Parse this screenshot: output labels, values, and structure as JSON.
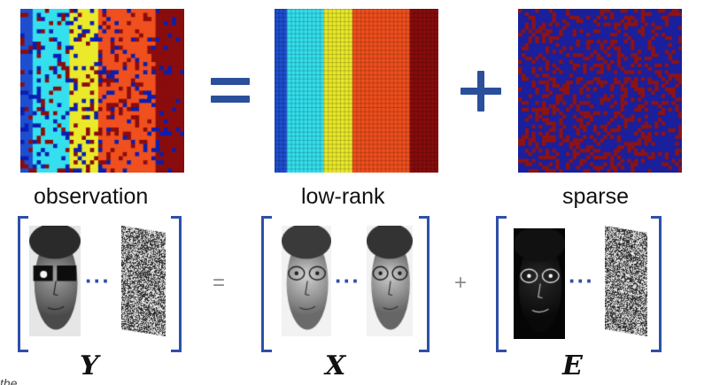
{
  "equation_top": {
    "operators": {
      "equals": "=",
      "plus": "+"
    },
    "labels": {
      "observation": "observation",
      "low_rank": "low-rank",
      "sparse": "sparse"
    },
    "colors": {
      "dark_blue": "#0b1fb0",
      "blue": "#1e4fd0",
      "cyan": "#35e0ee",
      "yellow": "#eaea2b",
      "orange_red": "#f0501e",
      "dark_red": "#8a0d0d",
      "sparse_bg": "#1a1f9c",
      "sparse_dots": "#8c1414",
      "operator": "#2b4f9b"
    }
  },
  "equation_bottom": {
    "operators": {
      "equals": "=",
      "plus": "+"
    },
    "ellipsis": "···",
    "variables": {
      "Y": "Y",
      "X": "X",
      "E": "E"
    },
    "bracket_color": "#2f4fa8"
  },
  "footer_fragment": "the"
}
